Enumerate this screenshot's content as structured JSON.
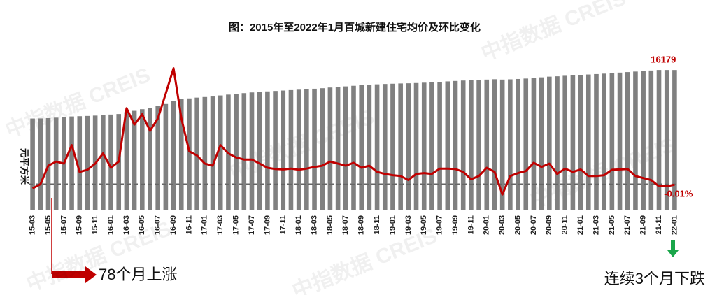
{
  "chart_data": {
    "type": "bar-line",
    "title": "图：2015年至2022年1月百城新建住宅均价及环比变化",
    "y_label": "元平方米",
    "watermark": "中指数据 CREIS",
    "annotations": [
      "78个月上涨",
      "连续3个月下跌"
    ],
    "categories": [
      "15-03",
      null,
      "15-05",
      null,
      "15-07",
      null,
      "15-09",
      null,
      "15-11",
      null,
      "16-01",
      null,
      "16-03",
      null,
      "16-05",
      null,
      "16-07",
      null,
      "16-09",
      null,
      "16-11",
      null,
      "17-01",
      null,
      "17-03",
      null,
      "17-05",
      null,
      "17-07",
      null,
      "17-09",
      null,
      "17-11",
      null,
      "18-01",
      null,
      "18-03",
      null,
      "18-05",
      null,
      "18-07",
      null,
      "18-09",
      null,
      "18-11",
      null,
      "19-01",
      null,
      "19-03",
      null,
      "19-05",
      null,
      "19-07",
      null,
      "19-09",
      null,
      "19-11",
      null,
      "20-01",
      null,
      "20-03",
      null,
      "20-05",
      null,
      "20-07",
      null,
      "20-09",
      null,
      "20-11",
      null,
      "21-01",
      null,
      "21-03",
      null,
      "21-05",
      null,
      "21-07",
      null,
      "21-09",
      null,
      "21-11",
      null,
      "22-01"
    ],
    "ylim": [
      0,
      17000
    ],
    "y2lim": [
      -0.62,
      2.95
    ],
    "series": [
      {
        "type": "bar",
        "color": "#808080",
        "values": [
          10560,
          10570,
          10610,
          10660,
          10710,
          10800,
          10830,
          10860,
          10900,
          10980,
          11020,
          11080,
          11290,
          11450,
          11640,
          11790,
          11980,
          12240,
          12590,
          12790,
          12890,
          12980,
          13050,
          13110,
          13230,
          13330,
          13420,
          13500,
          13580,
          13650,
          13700,
          13750,
          13800,
          13850,
          13900,
          13950,
          14010,
          14070,
          14150,
          14220,
          14280,
          14350,
          14410,
          14480,
          14520,
          14560,
          14590,
          14620,
          14640,
          14670,
          14710,
          14750,
          14800,
          14860,
          14910,
          14960,
          14980,
          15010,
          15070,
          15110,
          15070,
          15100,
          15140,
          15190,
          15270,
          15330,
          15410,
          15450,
          15510,
          15560,
          15610,
          15660,
          15710,
          15760,
          15820,
          15880,
          15940,
          16000,
          16060,
          16120,
          16181,
          16180,
          16179
        ],
        "labeled": [
          82
        ]
      },
      {
        "type": "line",
        "color": "#c00000",
        "axis": "y2",
        "values": [
          -0.1,
          0.0,
          0.45,
          0.55,
          0.5,
          0.95,
          0.3,
          0.35,
          0.5,
          0.75,
          0.4,
          0.55,
          1.85,
          1.45,
          1.7,
          1.3,
          1.6,
          2.2,
          2.82,
          1.6,
          0.8,
          0.7,
          0.5,
          0.45,
          0.95,
          0.75,
          0.65,
          0.6,
          0.6,
          0.5,
          0.4,
          0.37,
          0.36,
          0.38,
          0.35,
          0.38,
          0.42,
          0.45,
          0.55,
          0.5,
          0.45,
          0.52,
          0.4,
          0.45,
          0.3,
          0.25,
          0.22,
          0.2,
          0.1,
          0.25,
          0.27,
          0.25,
          0.38,
          0.38,
          0.37,
          0.3,
          0.12,
          0.2,
          0.4,
          0.3,
          -0.25,
          0.2,
          0.27,
          0.32,
          0.52,
          0.42,
          0.5,
          0.25,
          0.38,
          0.3,
          0.36,
          0.2,
          0.2,
          0.22,
          0.35,
          0.36,
          0.37,
          0.2,
          0.15,
          0.1,
          -0.05,
          -0.05,
          -0.01
        ],
        "value_labels": [
          null,
          null,
          null,
          null,
          null,
          null,
          null,
          null,
          null,
          null,
          null,
          null,
          null,
          null,
          null,
          null,
          null,
          null,
          null,
          null,
          null,
          null,
          null,
          null,
          null,
          null,
          null,
          null,
          null,
          null,
          null,
          null,
          null,
          null,
          null,
          null,
          null,
          null,
          null,
          null,
          null,
          null,
          null,
          null,
          null,
          null,
          null,
          null,
          null,
          null,
          null,
          null,
          null,
          null,
          null,
          null,
          null,
          null,
          null,
          null,
          null,
          null,
          null,
          null,
          null,
          null,
          null,
          null,
          null,
          null,
          null,
          null,
          null,
          null,
          null,
          null,
          null,
          null,
          null,
          null,
          null,
          null,
          "-0.01%"
        ]
      }
    ]
  }
}
